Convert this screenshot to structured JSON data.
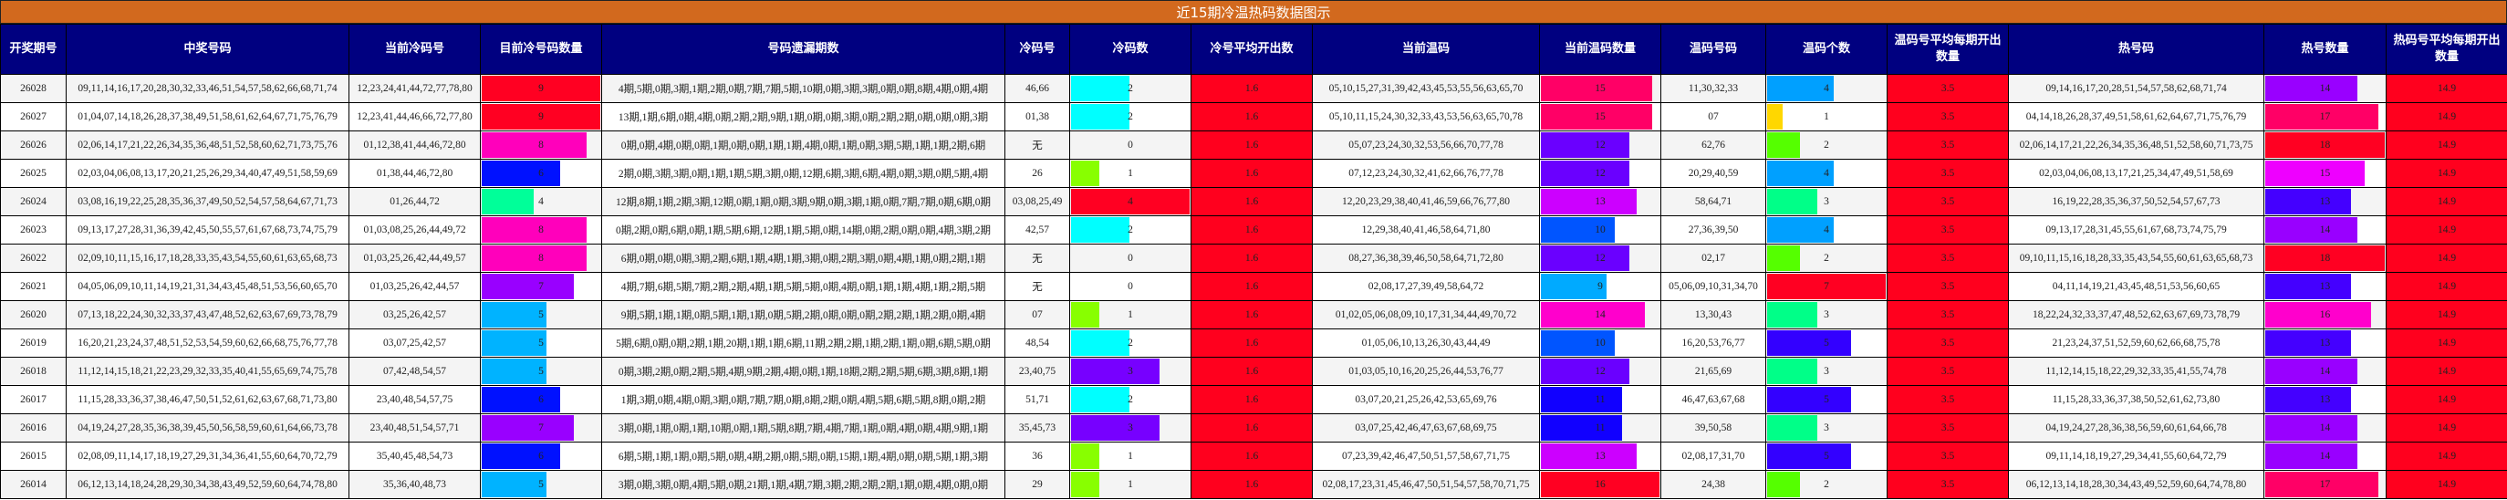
{
  "title": "近15期冷温热码数据图示",
  "headers": [
    "开奖期号",
    "中奖号码",
    "当前冷码号",
    "目前冷号码数量",
    "号码遗漏期数",
    "冷码号",
    "冷码数",
    "冷号平均开出数",
    "当前温码",
    "当前温码数量",
    "温码号码",
    "温码个数",
    "温码号平均每期开出数量",
    "热号码",
    "热号数量",
    "热码号平均每期开出数量"
  ],
  "bar_max": {
    "cold_qty": 9,
    "cold_num": 4,
    "warm_qty": 16,
    "warm_num": 7,
    "hot_qty": 18
  },
  "colors": {
    "title_bg": "#d2691e",
    "header_bg": "#000080",
    "avg_bg": "#ff001e",
    "cold_qty": {
      "9": "#ff0022",
      "8": "#ff00bb",
      "7": "#9900ff",
      "6": "#0011ff",
      "5": "#00b3ff",
      "4": "#00ff99"
    },
    "cold_num": {
      "4": "#ff0022",
      "3": "#7700ff",
      "2": "#00ffff",
      "1": "#88ff00"
    },
    "warm_qty": {
      "16": "#ff0022",
      "15": "#ff0066",
      "14": "#ff00cc",
      "13": "#cc00ff",
      "12": "#6a00ff",
      "11": "#1100ff",
      "10": "#0055ff",
      "9": "#00aaff"
    },
    "warm_num": {
      "7": "#ff0022",
      "5": "#3300ff",
      "4": "#00a0ff",
      "3": "#00ff88",
      "2": "#55ff00",
      "1": "#ffd700"
    },
    "hot_qty": {
      "18": "#ff0022",
      "17": "#ff0066",
      "16": "#ff00cc",
      "15": "#ee00ff",
      "14": "#9900ff",
      "13": "#4400ff"
    }
  },
  "rows": [
    {
      "period": "26028",
      "winning": "09,11,14,16,17,20,28,30,32,33,46,51,54,57,58,62,66,68,71,74",
      "cold_current": "12,23,24,41,44,72,77,78,80",
      "cold_qty": 9,
      "miss": "4期,5期,0期,3期,1期,2期,0期,7期,7期,5期,10期,0期,3期,3期,0期,0期,8期,4期,0期,4期",
      "cold_codes": "46,66",
      "cold_num": 2,
      "cold_avg": "1.6",
      "warm_current": "05,10,15,27,31,39,42,43,45,53,55,56,63,65,70",
      "warm_qty": 15,
      "warm_codes": "11,30,32,33",
      "warm_num": 4,
      "warm_avg": "3.5",
      "hot_codes": "09,14,16,17,20,28,51,54,57,58,62,68,71,74",
      "hot_qty": 14,
      "hot_avg": "14.9"
    },
    {
      "period": "26027",
      "winning": "01,04,07,14,18,26,28,37,38,49,51,58,61,62,64,67,71,75,76,79",
      "cold_current": "12,23,41,44,46,66,72,77,80",
      "cold_qty": 9,
      "miss": "13期,1期,6期,0期,4期,0期,2期,2期,9期,1期,0期,0期,3期,0期,2期,2期,0期,0期,0期,3期",
      "cold_codes": "01,38",
      "cold_num": 2,
      "cold_avg": "1.6",
      "warm_current": "05,10,11,15,24,30,32,33,43,53,56,63,65,70,78",
      "warm_qty": 15,
      "warm_codes": "07",
      "warm_num": 1,
      "warm_avg": "3.5",
      "hot_codes": "04,14,18,26,28,37,49,51,58,61,62,64,67,71,75,76,79",
      "hot_qty": 17,
      "hot_avg": "14.9"
    },
    {
      "period": "26026",
      "winning": "02,06,14,17,21,22,26,34,35,36,48,51,52,58,60,62,71,73,75,76",
      "cold_current": "01,12,38,41,44,46,72,80",
      "cold_qty": 8,
      "miss": "0期,0期,4期,0期,0期,1期,0期,0期,1期,1期,4期,0期,1期,0期,3期,5期,1期,1期,2期,6期",
      "cold_codes": "无",
      "cold_num": 0,
      "cold_avg": "1.6",
      "warm_current": "05,07,23,24,30,32,53,56,66,70,77,78",
      "warm_qty": 12,
      "warm_codes": "62,76",
      "warm_num": 2,
      "warm_avg": "3.5",
      "hot_codes": "02,06,14,17,21,22,26,34,35,36,48,51,52,58,60,71,73,75",
      "hot_qty": 18,
      "hot_avg": "14.9"
    },
    {
      "period": "26025",
      "winning": "02,03,04,06,08,13,17,20,21,25,26,29,34,40,47,49,51,58,59,69",
      "cold_current": "01,38,44,46,72,80",
      "cold_qty": 6,
      "miss": "2期,0期,3期,3期,0期,1期,1期,5期,3期,0期,12期,6期,3期,6期,4期,0期,3期,0期,5期,4期",
      "cold_codes": "26",
      "cold_num": 1,
      "cold_avg": "1.6",
      "warm_current": "07,12,23,24,30,32,41,62,66,76,77,78",
      "warm_qty": 12,
      "warm_codes": "20,29,40,59",
      "warm_num": 4,
      "warm_avg": "3.5",
      "hot_codes": "02,03,04,06,08,13,17,21,25,34,47,49,51,58,69",
      "hot_qty": 15,
      "hot_avg": "14.9"
    },
    {
      "period": "26024",
      "winning": "03,08,16,19,22,25,28,35,36,37,49,50,52,54,57,58,64,67,71,73",
      "cold_current": "01,26,44,72",
      "cold_qty": 4,
      "miss": "12期,8期,1期,2期,3期,12期,0期,1期,0期,3期,9期,0期,3期,1期,0期,7期,7期,0期,6期,0期",
      "cold_codes": "03,08,25,49",
      "cold_num": 4,
      "cold_avg": "1.6",
      "warm_current": "12,20,23,29,38,40,41,46,59,66,76,77,80",
      "warm_qty": 13,
      "warm_codes": "58,64,71",
      "warm_num": 3,
      "warm_avg": "3.5",
      "hot_codes": "16,19,22,28,35,36,37,50,52,54,57,67,73",
      "hot_qty": 13,
      "hot_avg": "14.9"
    },
    {
      "period": "26023",
      "winning": "09,13,17,27,28,31,36,39,42,45,50,55,57,61,67,68,73,74,75,79",
      "cold_current": "01,03,08,25,26,44,49,72",
      "cold_qty": 8,
      "miss": "0期,2期,0期,6期,0期,1期,5期,6期,12期,1期,5期,0期,14期,0期,2期,0期,0期,4期,3期,2期",
      "cold_codes": "42,57",
      "cold_num": 2,
      "cold_avg": "1.6",
      "warm_current": "12,29,38,40,41,46,58,64,71,80",
      "warm_qty": 10,
      "warm_codes": "27,36,39,50",
      "warm_num": 4,
      "warm_avg": "3.5",
      "hot_codes": "09,13,17,28,31,45,55,61,67,68,73,74,75,79",
      "hot_qty": 14,
      "hot_avg": "14.9"
    },
    {
      "period": "26022",
      "winning": "02,09,10,11,15,16,17,18,28,33,35,43,54,55,60,61,63,65,68,73",
      "cold_current": "01,03,25,26,42,44,49,57",
      "cold_qty": 8,
      "miss": "6期,0期,0期,0期,3期,2期,6期,1期,4期,1期,3期,0期,2期,3期,0期,4期,1期,0期,2期,1期",
      "cold_codes": "无",
      "cold_num": 0,
      "cold_avg": "1.6",
      "warm_current": "08,27,36,38,39,46,50,58,64,71,72,80",
      "warm_qty": 12,
      "warm_codes": "02,17",
      "warm_num": 2,
      "warm_avg": "3.5",
      "hot_codes": "09,10,11,15,16,18,28,33,35,43,54,55,60,61,63,65,68,73",
      "hot_qty": 18,
      "hot_avg": "14.9"
    },
    {
      "period": "26021",
      "winning": "04,05,06,09,10,11,14,19,21,31,34,43,45,48,51,53,56,60,65,70",
      "cold_current": "01,03,25,26,42,44,57",
      "cold_qty": 7,
      "miss": "4期,7期,6期,5期,7期,2期,2期,4期,1期,5期,5期,0期,4期,0期,1期,1期,4期,1期,2期,5期",
      "cold_codes": "无",
      "cold_num": 0,
      "cold_avg": "1.6",
      "warm_current": "02,08,17,27,39,49,58,64,72",
      "warm_qty": 9,
      "warm_codes": "05,06,09,10,31,34,70",
      "warm_num": 7,
      "warm_avg": "3.5",
      "hot_codes": "04,11,14,19,21,43,45,48,51,53,56,60,65",
      "hot_qty": 13,
      "hot_avg": "14.9"
    },
    {
      "period": "26020",
      "winning": "07,13,18,22,24,30,32,33,37,43,47,48,52,62,63,67,69,73,78,79",
      "cold_current": "03,25,26,42,57",
      "cold_qty": 5,
      "miss": "9期,5期,1期,1期,0期,5期,1期,1期,0期,5期,2期,0期,0期,0期,2期,2期,1期,2期,0期,4期",
      "cold_codes": "07",
      "cold_num": 1,
      "cold_avg": "1.6",
      "warm_current": "01,02,05,06,08,09,10,17,31,34,44,49,70,72",
      "warm_qty": 14,
      "warm_codes": "13,30,43",
      "warm_num": 3,
      "warm_avg": "3.5",
      "hot_codes": "18,22,24,32,33,37,47,48,52,62,63,67,69,73,78,79",
      "hot_qty": 16,
      "hot_avg": "14.9"
    },
    {
      "period": "26019",
      "winning": "16,20,21,23,24,37,48,51,52,53,54,59,60,62,66,68,75,76,77,78",
      "cold_current": "03,07,25,42,57",
      "cold_qty": 5,
      "miss": "5期,6期,0期,0期,2期,1期,20期,1期,1期,6期,11期,2期,2期,1期,2期,1期,0期,6期,5期,0期",
      "cold_codes": "48,54",
      "cold_num": 2,
      "cold_avg": "1.6",
      "warm_current": "01,05,06,10,13,26,30,43,44,49",
      "warm_qty": 10,
      "warm_codes": "16,20,53,76,77",
      "warm_num": 5,
      "warm_avg": "3.5",
      "hot_codes": "21,23,24,37,51,52,59,60,62,66,68,75,78",
      "hot_qty": 13,
      "hot_avg": "14.9"
    },
    {
      "period": "26018",
      "winning": "11,12,14,15,18,21,22,23,29,32,33,35,40,41,55,65,69,74,75,78",
      "cold_current": "07,42,48,54,57",
      "cold_qty": 5,
      "miss": "0期,3期,2期,0期,2期,5期,4期,9期,2期,4期,0期,1期,18期,2期,2期,5期,6期,3期,8期,1期",
      "cold_codes": "23,40,75",
      "cold_num": 3,
      "cold_avg": "1.6",
      "warm_current": "01,03,05,10,16,20,25,26,44,53,76,77",
      "warm_qty": 12,
      "warm_codes": "21,65,69",
      "warm_num": 3,
      "warm_avg": "3.5",
      "hot_codes": "11,12,14,15,18,22,29,32,33,35,41,55,74,78",
      "hot_qty": 14,
      "hot_avg": "14.9"
    },
    {
      "period": "26017",
      "winning": "11,15,28,33,36,37,38,46,47,50,51,52,61,62,63,67,68,71,73,80",
      "cold_current": "23,40,48,54,57,75",
      "cold_qty": 6,
      "miss": "1期,3期,0期,4期,0期,3期,0期,7期,7期,0期,8期,2期,0期,4期,5期,6期,5期,8期,0期,2期",
      "cold_codes": "51,71",
      "cold_num": 2,
      "cold_avg": "1.6",
      "warm_current": "03,07,20,21,25,26,42,53,65,69,76",
      "warm_qty": 11,
      "warm_codes": "46,47,63,67,68",
      "warm_num": 5,
      "warm_avg": "3.5",
      "hot_codes": "11,15,28,33,36,37,38,50,52,61,62,73,80",
      "hot_qty": 13,
      "hot_avg": "14.9"
    },
    {
      "period": "26016",
      "winning": "04,19,24,27,28,35,36,38,39,45,50,56,58,59,60,61,64,66,73,78",
      "cold_current": "23,40,48,51,54,57,71",
      "cold_qty": 7,
      "miss": "3期,0期,1期,0期,1期,10期,0期,1期,5期,8期,7期,4期,7期,1期,0期,4期,0期,4期,9期,1期",
      "cold_codes": "35,45,73",
      "cold_num": 3,
      "cold_avg": "1.6",
      "warm_current": "03,07,25,42,46,47,63,67,68,69,75",
      "warm_qty": 11,
      "warm_codes": "39,50,58",
      "warm_num": 3,
      "warm_avg": "3.5",
      "hot_codes": "04,19,24,27,28,36,38,56,59,60,61,64,66,78",
      "hot_qty": 14,
      "hot_avg": "14.9"
    },
    {
      "period": "26015",
      "winning": "02,08,09,11,14,17,18,19,27,29,31,34,36,41,55,60,64,70,72,79",
      "cold_current": "35,40,45,48,54,73",
      "cold_qty": 6,
      "miss": "6期,5期,1期,1期,0期,5期,0期,4期,2期,0期,5期,0期,15期,1期,4期,0期,0期,5期,1期,3期",
      "cold_codes": "36",
      "cold_num": 1,
      "cold_avg": "1.6",
      "warm_current": "07,23,39,42,46,47,50,51,57,58,67,71,75",
      "warm_qty": 13,
      "warm_codes": "02,08,17,31,70",
      "warm_num": 5,
      "warm_avg": "3.5",
      "hot_codes": "09,11,14,18,19,27,29,34,41,55,60,64,72,79",
      "hot_qty": 14,
      "hot_avg": "14.9"
    },
    {
      "period": "26014",
      "winning": "06,12,13,14,18,24,28,29,30,34,38,43,49,52,59,60,64,74,78,80",
      "cold_current": "35,36,40,48,73",
      "cold_qty": 5,
      "miss": "3期,0期,3期,0期,4期,5期,0期,21期,1期,4期,7期,3期,2期,2期,2期,1期,0期,4期,0期,0期",
      "cold_codes": "29",
      "cold_num": 1,
      "cold_avg": "1.6",
      "warm_current": "02,08,17,23,31,45,46,47,50,51,54,57,58,70,71,75",
      "warm_qty": 16,
      "warm_codes": "24,38",
      "warm_num": 2,
      "warm_avg": "3.5",
      "hot_codes": "06,12,13,14,18,28,30,34,43,49,52,59,60,64,74,78,80",
      "hot_qty": 17,
      "hot_avg": "14.9"
    }
  ]
}
